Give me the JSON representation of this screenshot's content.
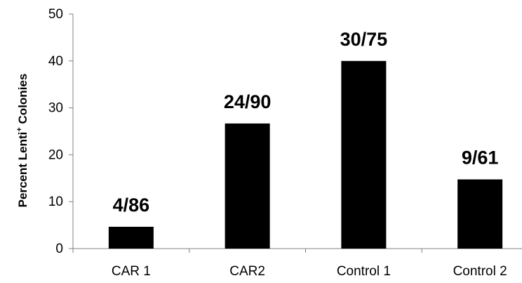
{
  "chart_data": {
    "type": "bar",
    "categories": [
      "CAR 1",
      "CAR2",
      "Control 1",
      "Control 2"
    ],
    "values": [
      4.65,
      26.67,
      40,
      14.75
    ],
    "data_labels": [
      "4/86",
      "24/90",
      "30/75",
      "9/61"
    ],
    "ylabel_main": "Percent Lenti",
    "ylabel_sup": "+",
    "ylabel_rest": " Colonies",
    "ylim": [
      0,
      50
    ],
    "yticks": [
      0,
      10,
      20,
      30,
      40,
      50
    ],
    "grid": false,
    "bar_color": "#000000"
  }
}
